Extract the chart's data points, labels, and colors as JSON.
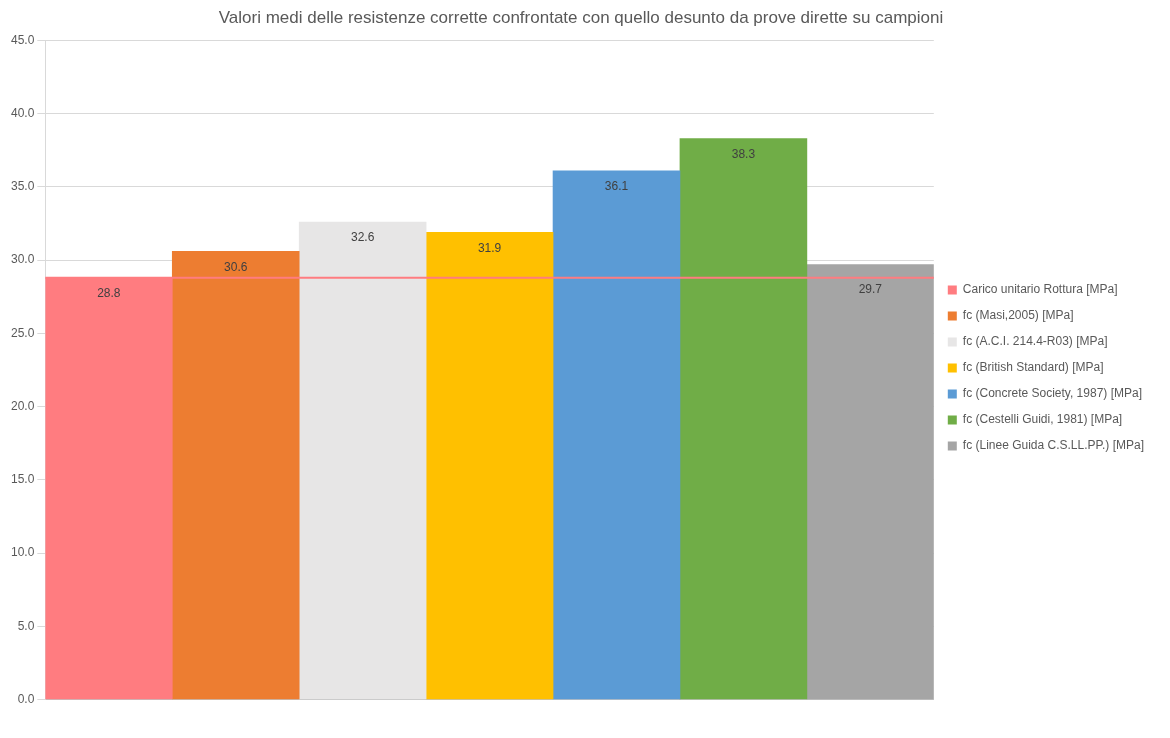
{
  "chart_data": {
    "type": "bar",
    "title": "Valori medi delle resistenze corrette confrontate con quello desunto da prove dirette su campioni",
    "categories": [
      null
    ],
    "series": [
      {
        "name": "Carico unitario Rottura [MPa]",
        "color": "#ff7c80",
        "values": [
          28.8
        ]
      },
      {
        "name": "fc (Masi,2005) [MPa]",
        "color": "#ed7d31",
        "values": [
          30.6
        ]
      },
      {
        "name": "fc (A.C.I. 214.4-R03) [MPa]",
        "color": "#e7e6e6",
        "values": [
          32.6
        ]
      },
      {
        "name": "fc (British Standard) [MPa]",
        "color": "#ffc000",
        "values": [
          31.9
        ]
      },
      {
        "name": "fc (Concrete Society, 1987) [MPa]",
        "color": "#5b9bd5",
        "values": [
          36.1
        ]
      },
      {
        "name": "fc (Cestelli Guidi, 1981) [MPa]",
        "color": "#70ad47",
        "values": [
          38.3
        ]
      },
      {
        "name": "fc (Linee Guida C.S.LL.PP.) [MPa]",
        "color": "#a5a5a5",
        "values": [
          29.7
        ]
      }
    ],
    "ylim": [
      0,
      45
    ],
    "yticks": [
      {
        "value": 0,
        "label": "0.0"
      },
      {
        "value": 5,
        "label": "5.0"
      },
      {
        "value": 10,
        "label": "10.0"
      },
      {
        "value": 15,
        "label": "15.0"
      },
      {
        "value": 20,
        "label": "20.0"
      },
      {
        "value": 25,
        "label": "25.0"
      },
      {
        "value": 30,
        "label": "30.0"
      },
      {
        "value": 35,
        "label": "35.0"
      },
      {
        "value": 40,
        "label": "40.0"
      },
      {
        "value": 45,
        "label": "45.0"
      }
    ],
    "ref_lines": [
      {
        "axis": "y",
        "value": 28.8,
        "color": "#ff7c80"
      }
    ],
    "grid": "y",
    "legend": "right",
    "data_labels": true
  }
}
